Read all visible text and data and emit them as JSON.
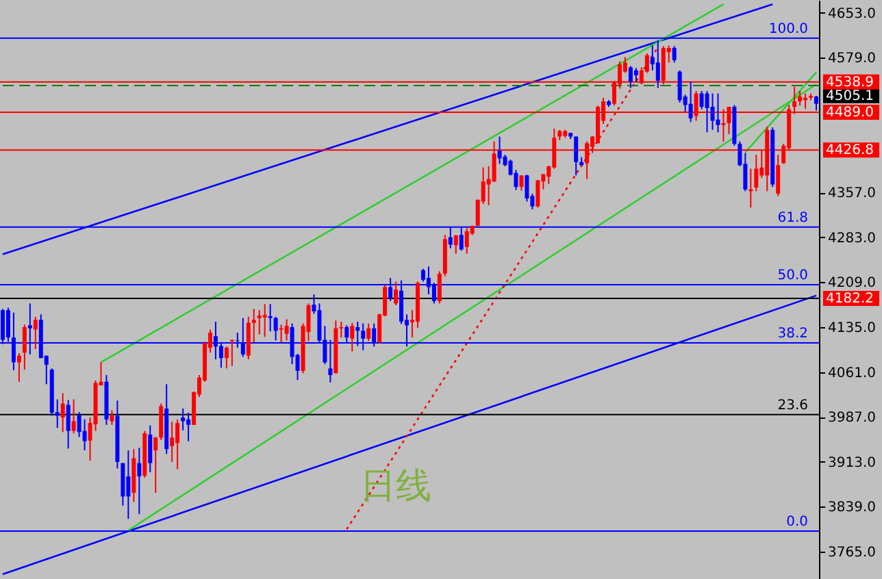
{
  "chart_data": {
    "type": "candlestick",
    "categories": [
      null,
      null,
      null,
      null,
      null,
      null,
      null,
      null,
      null,
      null,
      null,
      null,
      null,
      null,
      null,
      null,
      null,
      null,
      null,
      null,
      null,
      null,
      null,
      null,
      null,
      null,
      null,
      null,
      null,
      null,
      null,
      null,
      null,
      null,
      null,
      null,
      null,
      null,
      null,
      null,
      null,
      null,
      null,
      null,
      null,
      null,
      null,
      null,
      null,
      null,
      null,
      null,
      null,
      null,
      null,
      null,
      null,
      null,
      null,
      null,
      null,
      null,
      null,
      null,
      null,
      null,
      null,
      null,
      null,
      null,
      null,
      null,
      null,
      null,
      null,
      null,
      null,
      null,
      null,
      null,
      null,
      null,
      null,
      null,
      null,
      null,
      null,
      null,
      null,
      null,
      null,
      null,
      null,
      null,
      null,
      null,
      null,
      null,
      null,
      null,
      null,
      null,
      null,
      null,
      null,
      null,
      null,
      null,
      null,
      null,
      null,
      null,
      null,
      null,
      null,
      null,
      null,
      null,
      null,
      null,
      null,
      null,
      null,
      null,
      null,
      null,
      null,
      null,
      null,
      null,
      null,
      null,
      null,
      null,
      null,
      null,
      null,
      null,
      null,
      null,
      null,
      null,
      null,
      null,
      null,
      null,
      null,
      null,
      null,
      null
    ],
    "ohlc": [
      [
        4163,
        4165,
        4107,
        4114
      ],
      [
        4163,
        4167,
        4111,
        4118
      ],
      [
        4118,
        4159,
        4064,
        4077
      ],
      [
        4077,
        4092,
        4045,
        4088
      ],
      [
        4093,
        4139,
        4065,
        4135
      ],
      [
        4138,
        4174,
        4090,
        4133
      ],
      [
        4131,
        4152,
        4099,
        4147
      ],
      [
        4147,
        4156,
        4084,
        4084
      ],
      [
        4088,
        4088,
        4041,
        4073
      ],
      [
        4065,
        4067,
        3989,
        3994
      ],
      [
        3995,
        4016,
        3969,
        3989
      ],
      [
        3986,
        4026,
        3962,
        4009
      ],
      [
        4007,
        4015,
        3935,
        3964
      ],
      [
        3964,
        4016,
        3960,
        3980
      ],
      [
        3990,
        3995,
        3954,
        3962
      ],
      [
        3964,
        3983,
        3932,
        3947
      ],
      [
        3948,
        3986,
        3915,
        3977
      ],
      [
        3975,
        4047,
        3964,
        4043
      ],
      [
        4039,
        4077,
        4039,
        4045
      ],
      [
        4045,
        4056,
        3974,
        3983
      ],
      [
        3980,
        3998,
        3974,
        3989
      ],
      [
        3989,
        4014,
        3902,
        3913
      ],
      [
        3911,
        3911,
        3841,
        3856
      ],
      [
        3889,
        3932,
        3819,
        3856
      ],
      [
        3862,
        3934,
        3847,
        3919
      ],
      [
        3911,
        3936,
        3827,
        3889
      ],
      [
        3890,
        3964,
        3887,
        3960
      ],
      [
        3958,
        3973,
        3896,
        3911
      ],
      [
        3932,
        3954,
        3862,
        3953
      ],
      [
        3953,
        4009,
        3949,
        4005
      ],
      [
        4001,
        4041,
        3926,
        3934
      ],
      [
        3939,
        3979,
        3913,
        3953
      ],
      [
        3944,
        3983,
        3901,
        3977
      ],
      [
        3986,
        4001,
        3965,
        3980
      ],
      [
        3983,
        3994,
        3947,
        3974
      ],
      [
        3974,
        4029,
        3974,
        4028
      ],
      [
        4024,
        4056,
        4020,
        4052
      ],
      [
        4047,
        4111,
        4045,
        4109
      ],
      [
        4101,
        4131,
        4093,
        4126
      ],
      [
        4120,
        4144,
        4082,
        4103
      ],
      [
        4104,
        4110,
        4068,
        4084
      ],
      [
        4084,
        4103,
        4067,
        4101
      ],
      [
        4112,
        4114,
        4071,
        4114
      ],
      [
        4113,
        4126,
        4101,
        4112
      ],
      [
        4110,
        4150,
        4086,
        4090
      ],
      [
        4088,
        4152,
        4082,
        4142
      ],
      [
        4142,
        4165,
        4110,
        4147
      ],
      [
        4150,
        4163,
        4123,
        4154
      ],
      [
        4151,
        4173,
        4119,
        4155
      ],
      [
        4153,
        4173,
        4128,
        4150
      ],
      [
        4150,
        4152,
        4113,
        4129
      ],
      [
        4131,
        4139,
        4110,
        4133
      ],
      [
        4124,
        4148,
        4113,
        4137
      ],
      [
        4135,
        4141,
        4074,
        4086
      ],
      [
        4089,
        4091,
        4048,
        4063
      ],
      [
        4063,
        4141,
        4059,
        4137
      ],
      [
        4127,
        4174,
        4112,
        4171
      ],
      [
        4172,
        4189,
        4157,
        4161
      ],
      [
        4163,
        4174,
        4110,
        4113
      ],
      [
        4114,
        4137,
        4074,
        4077
      ],
      [
        4067,
        4114,
        4044,
        4056
      ],
      [
        4059,
        4146,
        4059,
        4133
      ],
      [
        4133,
        4144,
        4118,
        4135
      ],
      [
        4135,
        4138,
        4110,
        4118
      ],
      [
        4116,
        4142,
        4095,
        4137
      ],
      [
        4135,
        4144,
        4104,
        4129
      ],
      [
        4129,
        4141,
        4097,
        4116
      ],
      [
        4116,
        4141,
        4112,
        4133
      ],
      [
        4133,
        4141,
        4103,
        4109
      ],
      [
        4110,
        4157,
        4108,
        4156
      ],
      [
        4154,
        4204,
        4153,
        4201
      ],
      [
        4201,
        4216,
        4178,
        4182
      ],
      [
        4174,
        4210,
        4171,
        4197
      ],
      [
        4195,
        4212,
        4140,
        4144
      ],
      [
        4147,
        4156,
        4103,
        4138
      ],
      [
        4143,
        4163,
        4118,
        4147
      ],
      [
        4144,
        4210,
        4134,
        4208
      ],
      [
        4229,
        4231,
        4210,
        4213
      ],
      [
        4216,
        4235,
        4189,
        4201
      ],
      [
        4204,
        4208,
        4174,
        4178
      ],
      [
        4178,
        4227,
        4174,
        4223
      ],
      [
        4223,
        4287,
        4219,
        4280
      ],
      [
        4283,
        4300,
        4265,
        4271
      ],
      [
        4270,
        4287,
        4256,
        4286
      ],
      [
        4287,
        4300,
        4261,
        4263
      ],
      [
        4267,
        4298,
        4256,
        4293
      ],
      [
        4289,
        4302,
        4287,
        4302
      ],
      [
        4302,
        4345,
        4301,
        4345
      ],
      [
        4342,
        4398,
        4338,
        4375
      ],
      [
        4370,
        4400,
        4336,
        4379
      ],
      [
        4375,
        4441,
        4374,
        4421
      ],
      [
        4426,
        4449,
        4404,
        4413
      ],
      [
        4416,
        4419,
        4400,
        4402
      ],
      [
        4409,
        4411,
        4385,
        4386
      ],
      [
        4389,
        4394,
        4361,
        4366
      ],
      [
        4366,
        4385,
        4360,
        4385
      ],
      [
        4385,
        4386,
        4342,
        4347
      ],
      [
        4351,
        4355,
        4329,
        4334
      ],
      [
        4334,
        4377,
        4332,
        4377
      ],
      [
        4375,
        4387,
        4362,
        4387
      ],
      [
        4383,
        4401,
        4371,
        4400
      ],
      [
        4398,
        4462,
        4396,
        4447
      ],
      [
        4449,
        4460,
        4443,
        4458
      ],
      [
        4450,
        4460,
        4447,
        4458
      ],
      [
        4455,
        4455,
        4445,
        4449
      ],
      [
        4449,
        4449,
        4385,
        4407
      ],
      [
        4407,
        4415,
        4402,
        4402
      ],
      [
        4405,
        4441,
        4379,
        4438
      ],
      [
        4432,
        4450,
        4422,
        4449
      ],
      [
        4438,
        4500,
        4438,
        4498
      ],
      [
        4475,
        4513,
        4470,
        4507
      ],
      [
        4507,
        4509,
        4498,
        4501
      ],
      [
        4503,
        4541,
        4500,
        4538
      ],
      [
        4535,
        4573,
        4528,
        4568
      ],
      [
        4556,
        4580,
        4554,
        4571
      ],
      [
        4563,
        4565,
        4529,
        4539
      ],
      [
        4558,
        4562,
        4539,
        4550
      ],
      [
        4537,
        4563,
        4535,
        4558
      ],
      [
        4556,
        4586,
        4554,
        4583
      ],
      [
        4580,
        4599,
        4558,
        4568
      ],
      [
        4571,
        4608,
        4529,
        4541
      ],
      [
        4541,
        4598,
        4535,
        4595
      ],
      [
        4588,
        4599,
        4571,
        4595
      ],
      [
        4595,
        4598,
        4571,
        4575
      ],
      [
        4556,
        4558,
        4505,
        4509
      ],
      [
        4515,
        4518,
        4490,
        4501
      ],
      [
        4503,
        4539,
        4473,
        4479
      ],
      [
        4483,
        4524,
        4475,
        4520
      ],
      [
        4520,
        4524,
        4494,
        4498
      ],
      [
        4520,
        4524,
        4456,
        4496
      ],
      [
        4498,
        4520,
        4460,
        4475
      ],
      [
        4477,
        4520,
        4456,
        4468
      ],
      [
        4468,
        4494,
        4441,
        4471
      ],
      [
        4471,
        4498,
        4453,
        4498
      ],
      [
        4498,
        4501,
        4434,
        4437
      ],
      [
        4437,
        4441,
        4400,
        4402
      ],
      [
        4404,
        4422,
        4359,
        4362
      ],
      [
        4359,
        4396,
        4332,
        4362
      ],
      [
        4365,
        4419,
        4359,
        4396
      ],
      [
        4385,
        4426,
        4381,
        4398
      ],
      [
        4385,
        4465,
        4359,
        4460
      ],
      [
        4460,
        4464,
        4366,
        4370
      ],
      [
        4355,
        4419,
        4351,
        4402
      ],
      [
        4405,
        4437,
        4404,
        4434
      ],
      [
        4430,
        4501,
        4426,
        4494
      ],
      [
        4498,
        4531,
        4486,
        4507
      ],
      [
        4507,
        4524,
        4500,
        4515
      ],
      [
        4509,
        4520,
        4495,
        4513
      ],
      [
        4513,
        4520,
        4509,
        4516
      ],
      [
        4515,
        4516,
        4492,
        4503
      ]
    ],
    "colors": [
      "#0000ff",
      "#0000ff",
      "#0000ff",
      "#ff0000",
      "#ff0000",
      "#0000ff",
      "#ff0000",
      "#0000ff",
      "#0000ff",
      "#0000ff",
      "#0000ff",
      "#ff0000",
      "#0000ff",
      "#ff0000",
      "#0000ff",
      "#0000ff",
      "#ff0000",
      "#ff0000",
      "#ff0000",
      "#0000ff",
      "#ff0000",
      "#0000ff",
      "#0000ff",
      "#0000ff",
      "#ff0000",
      "#0000ff",
      "#ff0000",
      "#0000ff",
      "#ff0000",
      "#ff0000",
      "#0000ff",
      "#ff0000",
      "#ff0000",
      "#0000ff",
      "#0000ff",
      "#ff0000",
      "#ff0000",
      "#ff0000",
      "#ff0000",
      "#0000ff",
      "#0000ff",
      "#ff0000",
      "#ff0000",
      "#0000ff",
      "#0000ff",
      "#ff0000",
      "#ff0000",
      "#ff0000",
      "#ff0000",
      "#0000ff",
      "#0000ff",
      "#ff0000",
      "#ff0000",
      "#0000ff",
      "#0000ff",
      "#ff0000",
      "#ff0000",
      "#0000ff",
      "#0000ff",
      "#0000ff",
      "#0000ff",
      "#ff0000",
      "#ff0000",
      "#0000ff",
      "#ff0000",
      "#0000ff",
      "#0000ff",
      "#ff0000",
      "#0000ff",
      "#ff0000",
      "#ff0000",
      "#0000ff",
      "#ff0000",
      "#0000ff",
      "#0000ff",
      "#ff0000",
      "#ff0000",
      "#0000ff",
      "#0000ff",
      "#0000ff",
      "#ff0000",
      "#ff0000",
      "#0000ff",
      "#ff0000",
      "#0000ff",
      "#ff0000",
      "#ff0000",
      "#ff0000",
      "#ff0000",
      "#ff0000",
      "#ff0000",
      "#0000ff",
      "#0000ff",
      "#0000ff",
      "#0000ff",
      "#ff0000",
      "#0000ff",
      "#0000ff",
      "#ff0000",
      "#ff0000",
      "#ff0000",
      "#ff0000",
      "#ff0000",
      "#ff0000",
      "#0000ff",
      "#0000ff",
      "#0000ff",
      "#ff0000",
      "#ff0000",
      "#ff0000",
      "#ff0000",
      "#0000ff",
      "#ff0000",
      "#ff0000",
      "#ff0000",
      "#0000ff",
      "#0000ff",
      "#ff0000",
      "#ff0000",
      "#0000ff",
      "#0000ff",
      "#ff0000",
      "#ff0000",
      "#0000ff",
      "#0000ff",
      "#0000ff",
      "#0000ff",
      "#ff0000",
      "#0000ff",
      "#0000ff",
      "#0000ff",
      "#0000ff",
      "#ff0000",
      "#ff0000",
      "#0000ff",
      "#0000ff",
      "#0000ff",
      "#ff0000",
      "#ff0000",
      "#ff0000",
      "#ff0000",
      "#0000ff",
      "#ff0000",
      "#ff0000",
      "#ff0000",
      "#ff0000",
      "#ff0000",
      "#ff0000",
      "#ff0000",
      "#0000ff"
    ],
    "ylim": [
      3720,
      4674
    ],
    "yticks": [
      {
        "value": 3765,
        "label": "3765.0"
      },
      {
        "value": 3839,
        "label": "3839.0"
      },
      {
        "value": 3913,
        "label": "3913.0"
      },
      {
        "value": 3987,
        "label": "3987.0"
      },
      {
        "value": 4061,
        "label": "4061.0"
      },
      {
        "value": 4135,
        "label": "4135.0"
      },
      {
        "value": 4209,
        "label": "4209.0"
      },
      {
        "value": 4283,
        "label": "4283.0"
      },
      {
        "value": 4357,
        "label": "4357.0"
      },
      {
        "value": 4579,
        "label": "4579.0"
      },
      {
        "value": 4653,
        "label": "4653.0"
      }
    ],
    "tick_labels": "y",
    "series": [
      {
        "type": "line",
        "values": [
          4255,
          null,
          null,
          null,
          null,
          null,
          null,
          null,
          null,
          null,
          null,
          null,
          null,
          null,
          null,
          null,
          null,
          null,
          null,
          null,
          null,
          null,
          null,
          null,
          null,
          null,
          null,
          null,
          null,
          null,
          null,
          null,
          null,
          null,
          null,
          null,
          null,
          null,
          null,
          null,
          null,
          null,
          null,
          null,
          null,
          null,
          null,
          null,
          null,
          null,
          null,
          null,
          null,
          null,
          null,
          null,
          null,
          null,
          null,
          null,
          null,
          null,
          null,
          null,
          null,
          null,
          null,
          null,
          null,
          null,
          null,
          null,
          null,
          null,
          null,
          null,
          null,
          null,
          null,
          null,
          null,
          null,
          null,
          null,
          null,
          null,
          null,
          null,
          null,
          null,
          null,
          null,
          null,
          null,
          null,
          null,
          null,
          null,
          null,
          null,
          null,
          null,
          null,
          null,
          null,
          null,
          null,
          null,
          null,
          null,
          null,
          null,
          null,
          null,
          null,
          null,
          null,
          null,
          null,
          null,
          null,
          null,
          null,
          null,
          null,
          null,
          null,
          null,
          null,
          null,
          null,
          null,
          null,
          null,
          null,
          null,
          null,
          null,
          null,
          null,
          null,
          4667,
          null,
          null,
          null,
          null,
          null,
          null,
          null,
          null
        ],
        "color": "#0000ff",
        "line_style": "solid"
      },
      {
        "type": "line",
        "values": [
          3728,
          null,
          null,
          null,
          null,
          null,
          null,
          null,
          null,
          null,
          null,
          null,
          null,
          null,
          null,
          null,
          null,
          null,
          null,
          null,
          null,
          null,
          null,
          null,
          null,
          null,
          null,
          null,
          null,
          null,
          null,
          null,
          null,
          null,
          null,
          null,
          null,
          null,
          null,
          null,
          null,
          null,
          null,
          null,
          null,
          null,
          null,
          null,
          null,
          null,
          null,
          null,
          null,
          null,
          null,
          null,
          null,
          null,
          null,
          null,
          null,
          null,
          null,
          null,
          null,
          null,
          null,
          null,
          null,
          null,
          null,
          null,
          null,
          null,
          null,
          null,
          null,
          null,
          null,
          null,
          null,
          null,
          null,
          null,
          null,
          null,
          null,
          null,
          null,
          null,
          null,
          null,
          null,
          null,
          null,
          null,
          null,
          null,
          null,
          null,
          null,
          null,
          null,
          null,
          null,
          null,
          null,
          null,
          null,
          null,
          null,
          null,
          null,
          null,
          null,
          null,
          null,
          null,
          null,
          null,
          null,
          null,
          null,
          null,
          null,
          null,
          null,
          null,
          null,
          null,
          null,
          null,
          null,
          null,
          null,
          null,
          null,
          null,
          null,
          null,
          null,
          null,
          null,
          null,
          null,
          null,
          null,
          null,
          null,
          4187
        ],
        "color": "#0000ff",
        "line_style": "solid"
      },
      {
        "type": "line",
        "values": [
          null,
          null,
          null,
          null,
          null,
          null,
          null,
          null,
          null,
          null,
          null,
          null,
          null,
          null,
          null,
          null,
          null,
          null,
          4077,
          null,
          null,
          null,
          null,
          null,
          null,
          null,
          null,
          null,
          null,
          null,
          null,
          null,
          null,
          null,
          null,
          null,
          null,
          null,
          null,
          null,
          null,
          null,
          null,
          null,
          null,
          null,
          null,
          null,
          null,
          null,
          null,
          null,
          null,
          null,
          null,
          null,
          null,
          null,
          null,
          null,
          null,
          null,
          null,
          null,
          null,
          null,
          null,
          null,
          null,
          null,
          null,
          null,
          null,
          null,
          null,
          null,
          null,
          null,
          null,
          null,
          null,
          null,
          null,
          null,
          null,
          null,
          null,
          null,
          null,
          null,
          null,
          null,
          null,
          null,
          null,
          null,
          null,
          null,
          null,
          null,
          null,
          null,
          null,
          null,
          null,
          null,
          null,
          null,
          null,
          null,
          null,
          null,
          null,
          null,
          null,
          null,
          null,
          null,
          null,
          null,
          null,
          null,
          null,
          null,
          null,
          null,
          null,
          null,
          null,
          null,
          null,
          null,
          4667,
          null,
          null,
          null,
          null,
          null,
          null,
          null,
          null,
          null,
          null,
          null,
          null,
          null,
          null,
          null,
          null,
          null
        ],
        "color": "#32cd32",
        "line_style": "solid"
      },
      {
        "type": "line",
        "values": [
          null,
          null,
          null,
          null,
          null,
          null,
          null,
          null,
          null,
          null,
          null,
          null,
          null,
          null,
          null,
          null,
          null,
          null,
          null,
          null,
          null,
          null,
          null,
          3800,
          null,
          null,
          null,
          null,
          null,
          null,
          null,
          null,
          null,
          null,
          null,
          null,
          null,
          null,
          null,
          null,
          null,
          null,
          null,
          null,
          null,
          null,
          null,
          null,
          null,
          null,
          null,
          null,
          null,
          null,
          null,
          null,
          null,
          null,
          null,
          null,
          null,
          null,
          null,
          null,
          null,
          null,
          null,
          null,
          null,
          null,
          null,
          null,
          null,
          null,
          null,
          null,
          null,
          null,
          null,
          null,
          null,
          null,
          null,
          null,
          null,
          null,
          null,
          null,
          null,
          null,
          null,
          null,
          null,
          null,
          null,
          null,
          null,
          null,
          null,
          null,
          null,
          null,
          null,
          null,
          null,
          null,
          null,
          null,
          null,
          null,
          null,
          null,
          null,
          null,
          null,
          null,
          null,
          null,
          null,
          null,
          null,
          null,
          null,
          null,
          null,
          null,
          null,
          null,
          null,
          null,
          null,
          null,
          null,
          null,
          null,
          null,
          null,
          null,
          null,
          null,
          null,
          null,
          null,
          null,
          null,
          null,
          null,
          null,
          null,
          4535
        ],
        "color": "#32cd32",
        "line_style": "solid"
      },
      {
        "type": "line",
        "values": [
          null,
          null,
          null,
          null,
          null,
          null,
          null,
          null,
          null,
          null,
          null,
          null,
          null,
          null,
          null,
          null,
          null,
          null,
          null,
          null,
          null,
          null,
          null,
          null,
          null,
          null,
          null,
          null,
          null,
          null,
          null,
          null,
          null,
          null,
          null,
          null,
          null,
          null,
          null,
          null,
          null,
          null,
          null,
          null,
          null,
          null,
          null,
          null,
          null,
          null,
          null,
          null,
          null,
          null,
          null,
          null,
          null,
          null,
          null,
          null,
          null,
          null,
          null,
          null,
          null,
          null,
          null,
          null,
          null,
          null,
          null,
          null,
          null,
          null,
          null,
          null,
          null,
          null,
          null,
          null,
          null,
          null,
          null,
          null,
          null,
          null,
          null,
          null,
          null,
          null,
          null,
          null,
          null,
          null,
          null,
          null,
          null,
          null,
          null,
          null,
          null,
          null,
          null,
          null,
          null,
          null,
          null,
          null,
          null,
          null,
          null,
          null,
          null,
          null,
          null,
          null,
          null,
          null,
          null,
          null,
          null,
          null,
          null,
          null,
          null,
          null,
          null,
          null,
          null,
          null,
          null,
          null,
          null,
          null,
          null,
          null,
          4423,
          null,
          null,
          null,
          null,
          null,
          null,
          null,
          null,
          null,
          null,
          null,
          null,
          4555
        ],
        "color": "#32cd32",
        "line_style": "solid"
      },
      {
        "type": "line",
        "values": [
          null,
          null,
          null,
          null,
          null,
          null,
          null,
          null,
          null,
          null,
          null,
          null,
          null,
          null,
          null,
          null,
          null,
          null,
          null,
          null,
          null,
          null,
          null,
          null,
          null,
          null,
          null,
          null,
          null,
          null,
          null,
          null,
          null,
          null,
          null,
          null,
          null,
          null,
          null,
          null,
          null,
          null,
          null,
          null,
          null,
          null,
          null,
          null,
          null,
          null,
          null,
          null,
          null,
          null,
          null,
          null,
          null,
          null,
          null,
          null,
          null,
          null,
          null,
          3802,
          null,
          null,
          null,
          null,
          null,
          null,
          null,
          null,
          null,
          null,
          null,
          null,
          null,
          null,
          null,
          null,
          null,
          null,
          null,
          null,
          null,
          null,
          null,
          null,
          null,
          null,
          null,
          null,
          null,
          null,
          null,
          null,
          null,
          null,
          null,
          null,
          null,
          null,
          null,
          null,
          null,
          null,
          null,
          null,
          null,
          null,
          null,
          null,
          null,
          null,
          null,
          null,
          null,
          null,
          null,
          null,
          4596,
          null,
          null,
          null,
          null,
          null,
          null,
          null,
          null,
          null,
          null,
          null,
          null,
          null,
          null,
          null,
          null,
          null,
          null,
          null,
          null,
          null,
          null,
          null,
          null,
          null,
          null,
          null,
          null,
          null
        ],
        "color": "#ff0000",
        "line_style": "dotted"
      }
    ],
    "ref_lines": [
      {
        "axis": "y",
        "value": 4611,
        "color": "#0000ff"
      },
      {
        "axis": "y",
        "value": 4300,
        "color": "#0000ff"
      },
      {
        "axis": "y",
        "value": 4205,
        "color": "#0000ff"
      },
      {
        "axis": "y",
        "value": 4109,
        "color": "#0000ff"
      },
      {
        "axis": "y",
        "value": 3991,
        "color": "#000000"
      },
      {
        "axis": "y",
        "value": 3799,
        "color": "#0000ff"
      },
      {
        "axis": "y",
        "value": 4533,
        "color": "#008000",
        "line_style": "dashed"
      },
      {
        "axis": "y",
        "value": 4538.9,
        "label": "4538.9",
        "color": "#ff0000"
      },
      {
        "axis": "y",
        "value": 4489.0,
        "label": "4489.0",
        "color": "#ff0000"
      },
      {
        "axis": "y",
        "value": 4426.8,
        "label": "4426.8",
        "color": "#ff0000"
      },
      {
        "axis": "y",
        "value": 4182.2,
        "label": "4182.2",
        "color": "#000000"
      }
    ],
    "annotations": [
      "日线",
      "4505.1",
      {
        "text": "100.0",
        "y": 4611
      },
      {
        "text": "61.8",
        "y": 4300
      },
      {
        "text": "50.0",
        "y": 4205
      },
      {
        "text": "38.2",
        "y": 4109
      },
      {
        "text": "23.6",
        "y": 3991
      },
      {
        "text": "0.0",
        "y": 3799
      }
    ]
  }
}
